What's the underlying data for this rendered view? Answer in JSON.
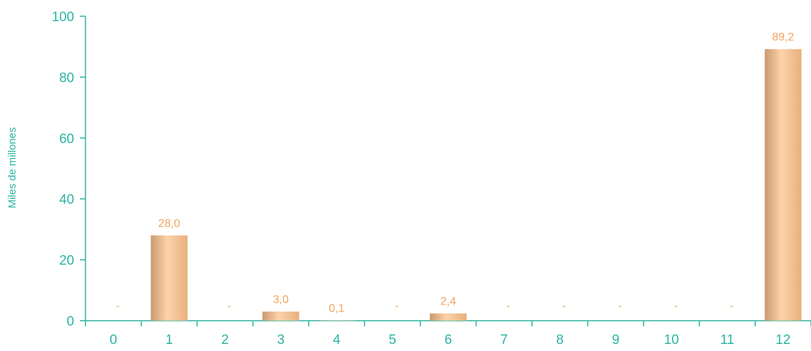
{
  "chart_data": {
    "type": "bar",
    "ylabel": "Miles de millones",
    "xlabel": "",
    "categories": [
      "0",
      "1",
      "2",
      "3",
      "4",
      "5",
      "6",
      "7",
      "8",
      "9",
      "10",
      "11",
      "12"
    ],
    "values": [
      0,
      28.0,
      0,
      3.0,
      0.1,
      0,
      2.4,
      0,
      0,
      0,
      0,
      0,
      89.2
    ],
    "data_labels": [
      "-",
      "28,0",
      "-",
      "3,0",
      "0,1",
      "-",
      "2,4",
      "-",
      "-",
      "-",
      "-",
      "-",
      "89,2"
    ],
    "yticks": [
      "0",
      "20",
      "40",
      "60",
      "80",
      "100"
    ],
    "ylim": [
      0,
      100
    ],
    "grid": false,
    "legend": "none",
    "colors": {
      "axis": "#2bb3a3",
      "label": "#f0a35c",
      "bar_light": "#fdd3ab",
      "bar_dark": "#c9996d"
    }
  }
}
